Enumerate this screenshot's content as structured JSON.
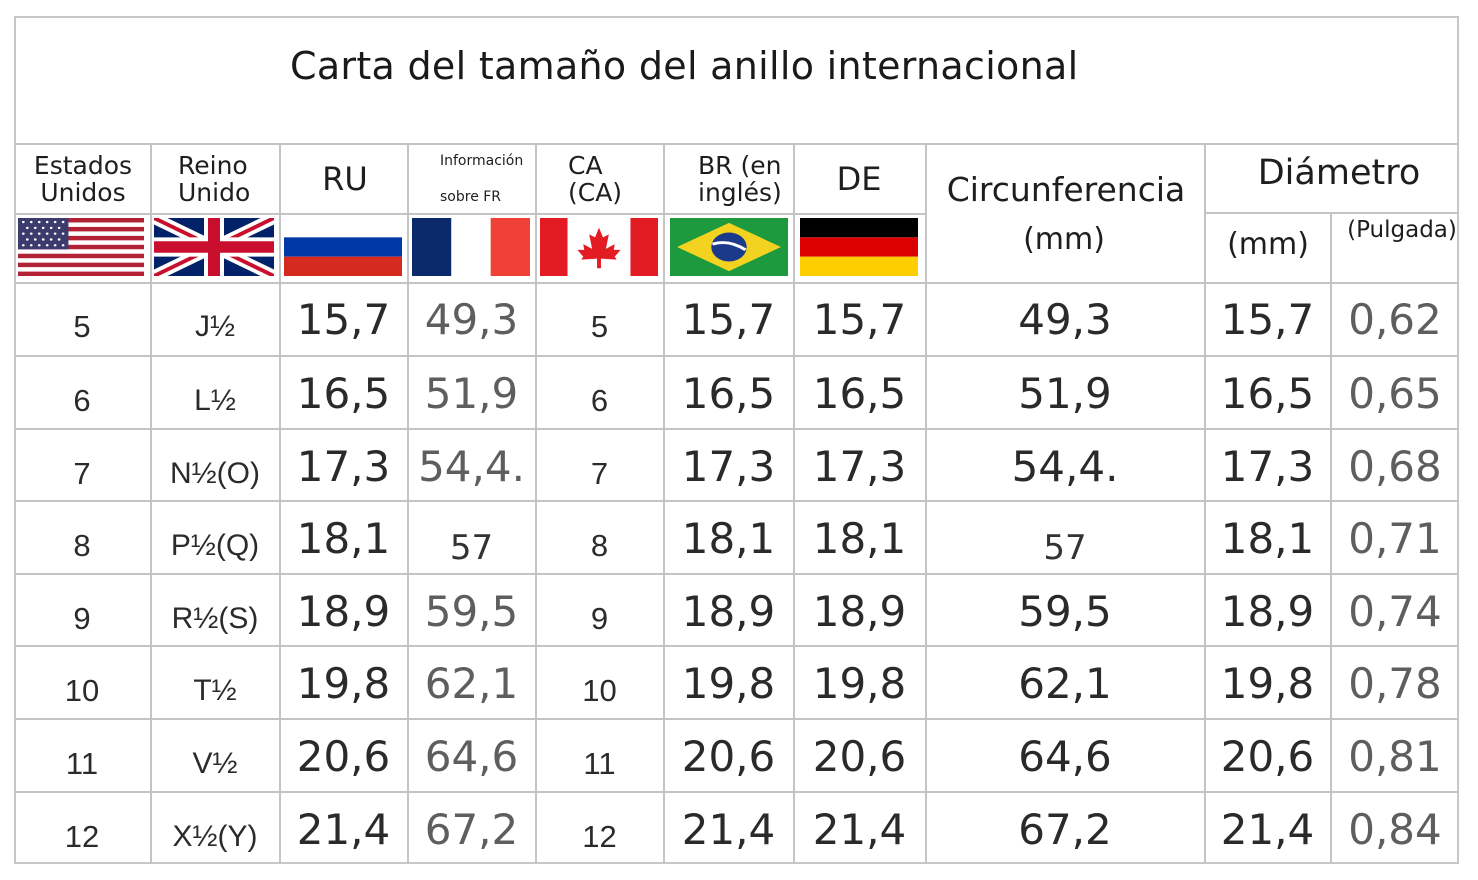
{
  "title": "Carta del tamaño del anillo internacional",
  "headers": {
    "us": "Estados\nUnidos",
    "uk": "Reino\nUnido",
    "ru": "RU",
    "fr": "Información\n\nsobre FR",
    "ca": "CA\n(CA)",
    "br": "BR (en\ninglés)",
    "de": "DE",
    "circ": "Circunferencia",
    "circ_unit": "(mm)",
    "diam": "Diámetro",
    "diam_mm": "(mm)",
    "diam_in": "(Pulgada)"
  },
  "flags": [
    "us-flag-icon",
    "uk-flag-icon",
    "russia-flag-icon",
    "france-flag-icon",
    "canada-flag-icon",
    "brazil-flag-icon",
    "germany-flag-icon"
  ],
  "rows": [
    {
      "us": "5",
      "uk": "J½",
      "ru": "15,7",
      "fr": "49,3",
      "ca": "5",
      "br": "15,7",
      "de": "15,7",
      "circ": "49,3",
      "mm": "15,7",
      "inch": "0,62"
    },
    {
      "us": "6",
      "uk": "L½",
      "ru": "16,5",
      "fr": "51,9",
      "ca": "6",
      "br": "16,5",
      "de": "16,5",
      "circ": "51,9",
      "mm": "16,5",
      "inch": "0,65"
    },
    {
      "us": "7",
      "uk": "N½(O)",
      "ru": "17,3",
      "fr": "54,4.",
      "ca": "7",
      "br": "17,3",
      "de": "17,3",
      "circ": "54,4.",
      "mm": "17,3",
      "inch": "0,68"
    },
    {
      "us": "8",
      "uk": "P½(Q)",
      "ru": "18,1",
      "fr": "57",
      "ca": "8",
      "br": "18,1",
      "de": "18,1",
      "circ": "57",
      "mm": "18,1",
      "inch": "0,71"
    },
    {
      "us": "9",
      "uk": "R½(S)",
      "ru": "18,9",
      "fr": "59,5",
      "ca": "9",
      "br": "18,9",
      "de": "18,9",
      "circ": "59,5",
      "mm": "18,9",
      "inch": "0,74"
    },
    {
      "us": "10",
      "uk": "T½",
      "ru": "19,8",
      "fr": "62,1",
      "ca": "10",
      "br": "19,8",
      "de": "19,8",
      "circ": "62,1",
      "mm": "19,8",
      "inch": "0,78"
    },
    {
      "us": "11",
      "uk": "V½",
      "ru": "20,6",
      "fr": "64,6",
      "ca": "11",
      "br": "20,6",
      "de": "20,6",
      "circ": "64,6",
      "mm": "20,6",
      "inch": "0,81"
    },
    {
      "us": "12",
      "uk": "X½(Y)",
      "ru": "21,4",
      "fr": "67,2",
      "ca": "12",
      "br": "21,4",
      "de": "21,4",
      "circ": "67,2",
      "mm": "21,4",
      "inch": "0,84"
    }
  ]
}
